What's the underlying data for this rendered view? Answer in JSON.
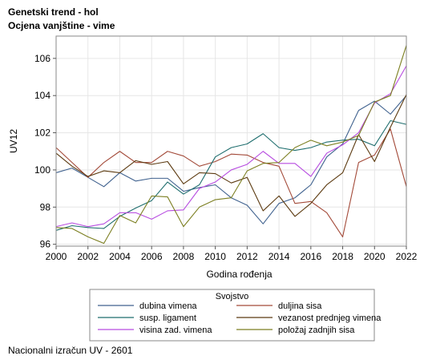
{
  "titles": {
    "line1": "Genetski trend - hol",
    "line2": "Ocjena vanjštine - vime"
  },
  "footnote": "Nacionalni izračun UV - 2601",
  "chart_data": {
    "type": "line",
    "xlabel": "Godina rođenja",
    "ylabel": "UV12",
    "xlim": [
      2000,
      2022
    ],
    "ylim": [
      95.9,
      107.2
    ],
    "xticks": [
      "2000",
      "2002",
      "2004",
      "2006",
      "2008",
      "2010",
      "2012",
      "2014",
      "2016",
      "2018",
      "2020",
      "2022"
    ],
    "yticks": [
      "96",
      "98",
      "100",
      "102",
      "104",
      "106"
    ],
    "grid": true,
    "legend_title": "Svojstvo",
    "legend_position": "bottom",
    "x": [
      2000,
      2001,
      2002,
      2003,
      2004,
      2005,
      2006,
      2007,
      2008,
      2009,
      2010,
      2011,
      2012,
      2013,
      2014,
      2015,
      2016,
      2017,
      2018,
      2019,
      2020,
      2021,
      2022
    ],
    "series": [
      {
        "name": "dubina vimena",
        "color": "#40628f",
        "values": [
          99.85,
          100.1,
          99.6,
          99.1,
          99.85,
          99.4,
          99.55,
          99.55,
          98.85,
          99.05,
          99.2,
          98.5,
          98.1,
          97.1,
          98.2,
          98.5,
          99.2,
          100.7,
          101.4,
          103.2,
          103.7,
          103.0,
          104.0
        ]
      },
      {
        "name": "duljina sisa",
        "color": "#a34a39",
        "values": [
          101.2,
          100.4,
          99.6,
          100.4,
          101.0,
          100.4,
          100.4,
          101.0,
          100.75,
          100.2,
          100.45,
          100.85,
          100.8,
          100.4,
          100.2,
          98.2,
          98.3,
          97.7,
          96.4,
          100.4,
          100.8,
          102.2,
          99.1
        ]
      },
      {
        "name": "susp. ligament",
        "color": "#1f6e6e",
        "values": [
          96.75,
          97.0,
          96.9,
          96.85,
          97.5,
          97.95,
          98.35,
          99.35,
          98.7,
          99.2,
          100.7,
          101.2,
          101.4,
          101.95,
          101.2,
          101.05,
          101.2,
          101.5,
          101.6,
          101.65,
          101.3,
          102.65,
          102.45
        ]
      },
      {
        "name": "vezanost prednjeg vimena",
        "color": "#5c3a10",
        "values": [
          100.9,
          100.2,
          99.65,
          99.95,
          99.85,
          100.5,
          100.3,
          100.45,
          99.25,
          99.85,
          99.8,
          99.3,
          99.6,
          97.8,
          98.6,
          97.5,
          98.2,
          99.2,
          99.85,
          101.9,
          100.45,
          102.3,
          104.05
        ]
      },
      {
        "name": "visina zad. vimena",
        "color": "#b74ce0",
        "values": [
          96.95,
          97.15,
          96.95,
          97.1,
          97.7,
          97.7,
          97.35,
          97.8,
          97.85,
          99.0,
          99.35,
          100.0,
          100.3,
          101.0,
          100.35,
          100.35,
          99.65,
          100.9,
          101.35,
          102.0,
          103.6,
          104.1,
          105.6
        ]
      },
      {
        "name": "položaj zadnjih sisa",
        "color": "#7c7f21",
        "values": [
          96.9,
          96.85,
          96.4,
          96.05,
          97.55,
          97.15,
          98.6,
          98.55,
          96.95,
          98.0,
          98.4,
          98.5,
          99.95,
          100.35,
          100.4,
          101.2,
          101.6,
          101.3,
          101.5,
          101.85,
          103.65,
          104.0,
          106.7
        ]
      }
    ]
  }
}
